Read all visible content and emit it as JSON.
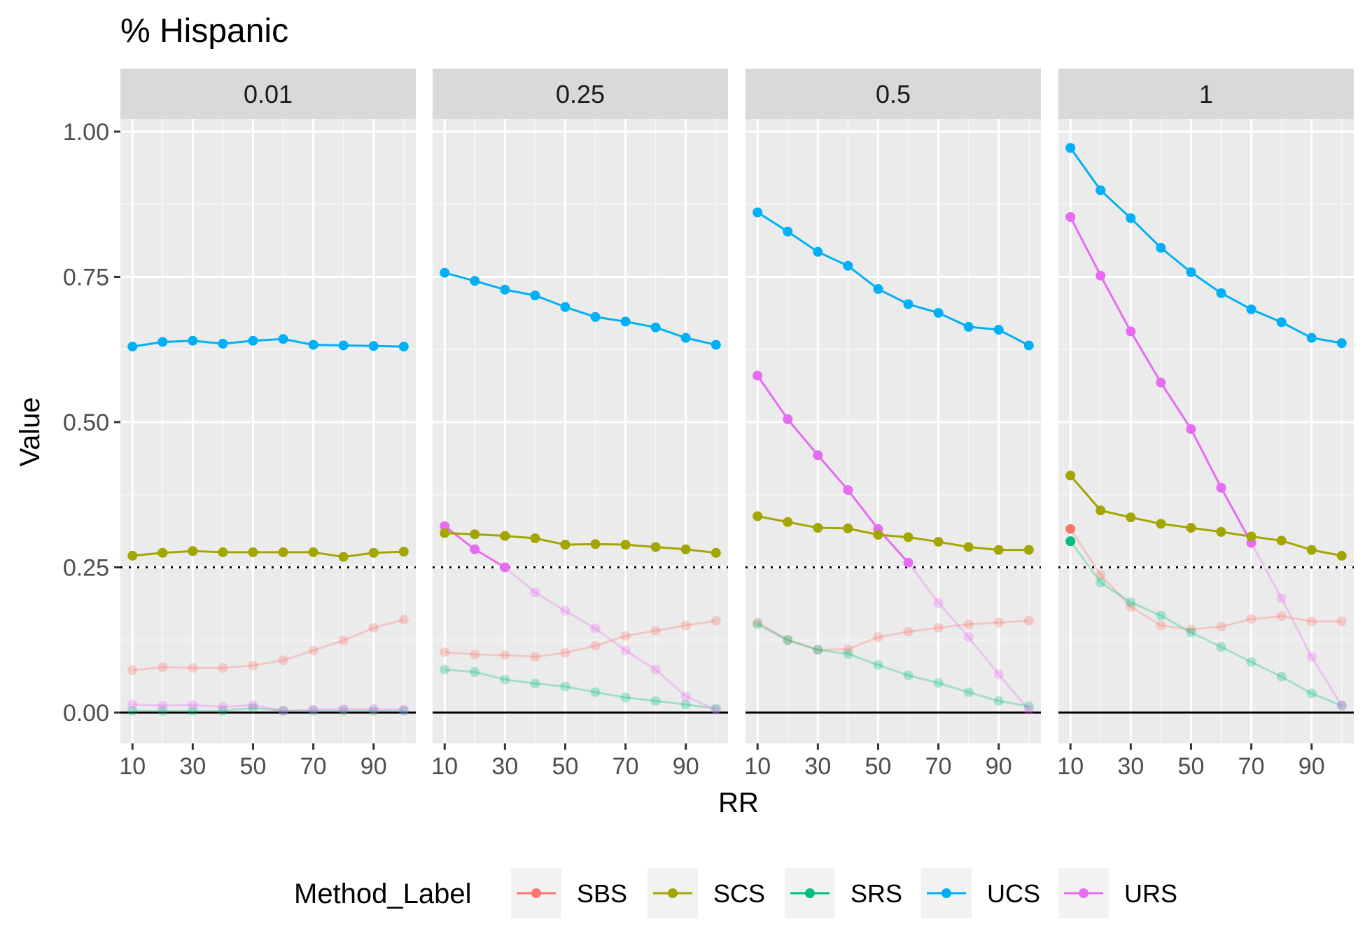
{
  "chart_data": {
    "type": "line",
    "title": "% Hispanic",
    "xlabel": "RR",
    "ylabel": "Value",
    "ylim": [
      -0.05,
      1.1
    ],
    "xlim": [
      6,
      104
    ],
    "x": [
      10,
      20,
      30,
      40,
      50,
      60,
      70,
      80,
      90,
      100
    ],
    "x_ticks": [
      10,
      30,
      50,
      70,
      90
    ],
    "x_tick_labels": [
      "10",
      "30",
      "50",
      "70",
      "90"
    ],
    "y_ticks": [
      0,
      0.25,
      0.5,
      0.75,
      1.0
    ],
    "y_tick_labels": [
      "0.00",
      "0.25",
      "0.50",
      "0.75",
      "1.00"
    ],
    "reference_lines": [
      {
        "y": 0.25,
        "style": "dotted"
      },
      {
        "y": 0.0,
        "style": "solid"
      }
    ],
    "legend": {
      "title": "Method_Label",
      "position": "bottom",
      "entries": [
        "SBS",
        "SCS",
        "SRS",
        "UCS",
        "URS"
      ]
    },
    "colors": {
      "SBS": "#F8766D",
      "SCS": "#A3A500",
      "SRS": "#00BF7D",
      "UCS": "#00B0F6",
      "URS": "#E76BF3"
    },
    "panels": [
      {
        "label": "0.01",
        "series": [
          {
            "name": "SBS",
            "values": [
              0.073,
              0.078,
              0.077,
              0.077,
              0.081,
              0.09,
              0.107,
              0.124,
              0.146,
              0.16
            ],
            "faded": [
              0,
              1,
              2,
              3,
              4,
              5,
              6,
              7,
              8,
              9
            ]
          },
          {
            "name": "SCS",
            "values": [
              0.27,
              0.275,
              0.278,
              0.276,
              0.276,
              0.276,
              0.276,
              0.268,
              0.275,
              0.277
            ],
            "faded": []
          },
          {
            "name": "SRS",
            "values": [
              0.003,
              0.003,
              0.003,
              0.003,
              0.008,
              0.003,
              0.003,
              0.003,
              0.003,
              0.003
            ],
            "faded": [
              0,
              1,
              2,
              3,
              4,
              5,
              6,
              7,
              8,
              9
            ]
          },
          {
            "name": "UCS",
            "values": [
              0.63,
              0.638,
              0.64,
              0.635,
              0.64,
              0.643,
              0.633,
              0.632,
              0.631,
              0.63
            ],
            "faded": []
          },
          {
            "name": "URS",
            "values": [
              0.014,
              0.012,
              0.013,
              0.01,
              0.013,
              0.003,
              0.005,
              0.006,
              0.006,
              0.005
            ],
            "faded": [
              0,
              1,
              2,
              3,
              4,
              5,
              6,
              7,
              8,
              9
            ]
          }
        ]
      },
      {
        "label": "0.25",
        "series": [
          {
            "name": "SBS",
            "values": [
              0.104,
              0.1,
              0.099,
              0.096,
              0.103,
              0.115,
              0.132,
              0.141,
              0.15,
              0.158
            ],
            "faded": [
              0,
              1,
              2,
              3,
              4,
              5,
              6,
              7,
              8,
              9
            ]
          },
          {
            "name": "SCS",
            "values": [
              0.309,
              0.307,
              0.304,
              0.3,
              0.289,
              0.29,
              0.289,
              0.285,
              0.281,
              0.275
            ],
            "faded": []
          },
          {
            "name": "SRS",
            "values": [
              0.074,
              0.07,
              0.057,
              0.05,
              0.045,
              0.035,
              0.026,
              0.02,
              0.014,
              0.007
            ],
            "faded": [
              0,
              1,
              2,
              3,
              4,
              5,
              6,
              7,
              8,
              9
            ]
          },
          {
            "name": "UCS",
            "values": [
              0.757,
              0.743,
              0.728,
              0.718,
              0.698,
              0.681,
              0.673,
              0.663,
              0.645,
              0.633
            ],
            "faded": []
          },
          {
            "name": "URS",
            "values": [
              0.321,
              0.281,
              0.25,
              0.207,
              0.175,
              0.145,
              0.107,
              0.074,
              0.028,
              0.005
            ],
            "faded": [
              3,
              4,
              5,
              6,
              7,
              8,
              9
            ]
          }
        ]
      },
      {
        "label": "0.5",
        "series": [
          {
            "name": "SBS",
            "values": [
              0.155,
              0.125,
              0.108,
              0.109,
              0.13,
              0.139,
              0.146,
              0.152,
              0.155,
              0.158
            ],
            "faded": [
              0,
              1,
              2,
              3,
              4,
              5,
              6,
              7,
              8,
              9
            ]
          },
          {
            "name": "SCS",
            "values": [
              0.338,
              0.328,
              0.318,
              0.317,
              0.306,
              0.302,
              0.294,
              0.285,
              0.28,
              0.28
            ],
            "faded": []
          },
          {
            "name": "SRS",
            "values": [
              0.152,
              0.125,
              0.108,
              0.101,
              0.082,
              0.064,
              0.051,
              0.035,
              0.02,
              0.011
            ],
            "faded": [
              0,
              1,
              2,
              3,
              4,
              5,
              6,
              7,
              8,
              9
            ]
          },
          {
            "name": "UCS",
            "values": [
              0.861,
              0.828,
              0.793,
              0.769,
              0.729,
              0.703,
              0.688,
              0.664,
              0.659,
              0.632
            ],
            "faded": []
          },
          {
            "name": "URS",
            "values": [
              0.58,
              0.505,
              0.443,
              0.383,
              0.316,
              0.258,
              0.189,
              0.13,
              0.066,
              0.005
            ],
            "faded": [
              6,
              7,
              8,
              9
            ]
          }
        ]
      },
      {
        "label": "1",
        "series": [
          {
            "name": "SBS",
            "values": [
              0.316,
              0.237,
              0.182,
              0.15,
              0.143,
              0.148,
              0.161,
              0.166,
              0.157,
              0.157
            ],
            "faded": [
              1,
              2,
              3,
              4,
              5,
              6,
              7,
              8,
              9
            ]
          },
          {
            "name": "SCS",
            "values": [
              0.408,
              0.348,
              0.336,
              0.325,
              0.318,
              0.311,
              0.303,
              0.296,
              0.28,
              0.27
            ],
            "faded": []
          },
          {
            "name": "SRS",
            "values": [
              0.295,
              0.224,
              0.19,
              0.167,
              0.138,
              0.113,
              0.087,
              0.062,
              0.033,
              0.012
            ],
            "faded": [
              1,
              2,
              3,
              4,
              5,
              6,
              7,
              8,
              9
            ]
          },
          {
            "name": "UCS",
            "values": [
              0.972,
              0.899,
              0.851,
              0.8,
              0.758,
              0.722,
              0.694,
              0.672,
              0.645,
              0.636
            ],
            "faded": []
          },
          {
            "name": "URS",
            "values": [
              0.853,
              0.752,
              0.656,
              0.568,
              0.488,
              0.387,
              0.292,
              0.197,
              0.096,
              0.012
            ],
            "faded": [
              7,
              8,
              9
            ]
          }
        ]
      }
    ]
  }
}
